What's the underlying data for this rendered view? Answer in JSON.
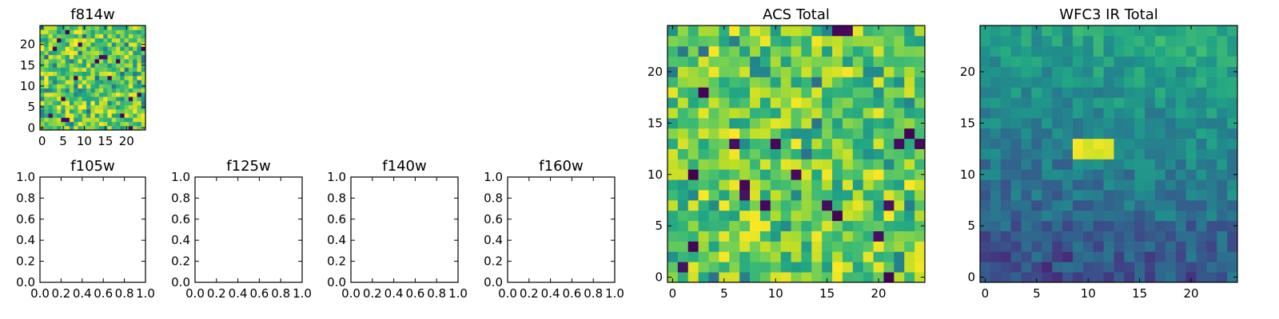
{
  "figure": {
    "background": "#ffffff",
    "colormap": "viridis"
  },
  "chart_data": [
    {
      "type": "heatmap",
      "title": "f814w",
      "grid_size": [
        25,
        25
      ],
      "xlim": [
        -0.5,
        24.5
      ],
      "ylim": [
        -0.5,
        24.5
      ],
      "xticks": [
        0,
        5,
        10,
        15,
        20
      ],
      "yticks": [
        0,
        5,
        10,
        15,
        20
      ],
      "xticklabels": [
        "0",
        "5",
        "10",
        "15",
        "20"
      ],
      "yticklabels": [
        "0",
        "5",
        "10",
        "15",
        "20"
      ],
      "value_range": [
        0,
        1
      ],
      "texture": "noisy-bright"
    },
    {
      "type": "empty",
      "title": "f105w",
      "xlim": [
        0,
        1
      ],
      "ylim": [
        0,
        1
      ],
      "xticklabels": [
        "0.0",
        "0.2",
        "0.4",
        "0.6",
        "0.8",
        "1.0"
      ],
      "yticklabels": [
        "0.0",
        "0.2",
        "0.4",
        "0.6",
        "0.8",
        "1.0"
      ]
    },
    {
      "type": "empty",
      "title": "f125w",
      "xlim": [
        0,
        1
      ],
      "ylim": [
        0,
        1
      ],
      "xticklabels": [
        "0.0",
        "0.2",
        "0.4",
        "0.6",
        "0.8",
        "1.0"
      ],
      "yticklabels": [
        "0.0",
        "0.2",
        "0.4",
        "0.6",
        "0.8",
        "1.0"
      ]
    },
    {
      "type": "empty",
      "title": "f140w",
      "xlim": [
        0,
        1
      ],
      "ylim": [
        0,
        1
      ],
      "xticklabels": [
        "0.0",
        "0.2",
        "0.4",
        "0.6",
        "0.8",
        "1.0"
      ],
      "yticklabels": [
        "0.0",
        "0.2",
        "0.4",
        "0.6",
        "0.8",
        "1.0"
      ]
    },
    {
      "type": "empty",
      "title": "f160w",
      "xlim": [
        0,
        1
      ],
      "ylim": [
        0,
        1
      ],
      "xticklabels": [
        "0.0",
        "0.2",
        "0.4",
        "0.6",
        "0.8",
        "1.0"
      ],
      "yticklabels": [
        "0.0",
        "0.2",
        "0.4",
        "0.6",
        "0.8",
        "1.0"
      ]
    },
    {
      "type": "heatmap",
      "title": "ACS Total",
      "grid_size": [
        25,
        25
      ],
      "xlim": [
        -0.5,
        24.5
      ],
      "ylim": [
        -0.5,
        24.5
      ],
      "xticks": [
        0,
        5,
        10,
        15,
        20
      ],
      "yticks": [
        0,
        5,
        10,
        15,
        20
      ],
      "xticklabels": [
        "0",
        "5",
        "10",
        "15",
        "20"
      ],
      "yticklabels": [
        "0",
        "5",
        "10",
        "15",
        "20"
      ],
      "value_range": [
        0,
        1
      ],
      "texture": "noisy-bright"
    },
    {
      "type": "heatmap",
      "title": "WFC3 IR Total",
      "grid_size": [
        25,
        25
      ],
      "xlim": [
        -0.5,
        24.5
      ],
      "ylim": [
        -0.5,
        24.5
      ],
      "xticks": [
        0,
        5,
        10,
        15,
        20
      ],
      "yticks": [
        0,
        5,
        10,
        15,
        20
      ],
      "xticklabels": [
        "0",
        "5",
        "10",
        "15",
        "20"
      ],
      "yticklabels": [
        "0",
        "5",
        "10",
        "15",
        "20"
      ],
      "value_range": [
        0,
        1
      ],
      "texture": "smooth-dark-gradient",
      "bright_feature": {
        "x": [
          9,
          12
        ],
        "y": [
          12,
          13
        ]
      }
    }
  ]
}
